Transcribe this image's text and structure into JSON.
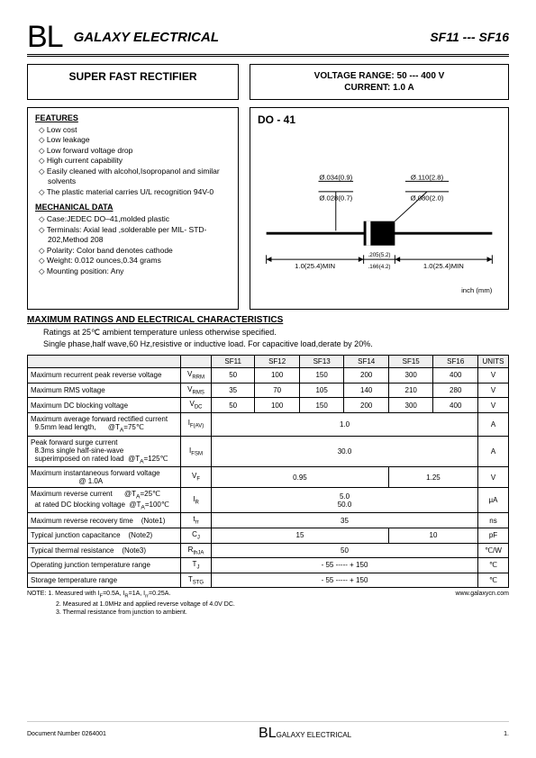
{
  "header": {
    "logo": "BL",
    "company": "GALAXY ELECTRICAL",
    "partno": "SF11 --- SF16"
  },
  "title": {
    "left": "SUPER  FAST  RECTIFIER",
    "right_line1": "VOLTAGE  RANGE:  50 --- 400 V",
    "right_line2": "CURRENT:  1.0 A"
  },
  "features": {
    "heading": "FEATURES",
    "items": [
      "Low cost",
      "Low leakage",
      "Low forward voltage drop",
      "High current capability",
      "Easily cleaned with alcohol,Isopropanol and similar solvents",
      "The plastic material carries U/L recognition 94V-0"
    ]
  },
  "mechdata": {
    "heading": "MECHANICAL DATA",
    "items": [
      "Case:JEDEC DO–41,molded plastic",
      "Terminals: Axial lead ,solderable per MIL- STD-202,Method 208",
      "Polarity: Color band denotes cathode",
      "Weight: 0.012 ounces,0.34 grams",
      "Mounting position: Any"
    ]
  },
  "package": {
    "name": "DO - 41",
    "dim1": "Ø.034(0.9)",
    "dim1b": "Ø.028(0.7)",
    "dim2": "Ø.110(2.8)",
    "dim2b": "Ø.080(2.0)",
    "len1": "1.0(25.4)MIN",
    "len2": ".205(5.2)",
    "len2b": ".166(4.2)",
    "len3": "1.0(25.4)MIN",
    "unitlabel": "inch (mm)"
  },
  "ratings": {
    "heading": "MAXIMUM RATINGS AND ELECTRICAL CHARACTERISTICS",
    "note1": "Ratings at 25℃ ambient temperature unless otherwise specified.",
    "note2": "Single phase,half wave,60 Hz,resistive or inductive load. For capacitive load,derate by 20%."
  },
  "table": {
    "headers": [
      "SF11",
      "SF12",
      "SF13",
      "SF14",
      "SF15",
      "SF16",
      "UNITS"
    ],
    "rows": [
      {
        "label": "Maximum recurrent peak reverse voltage",
        "sym": "V",
        "sub": "RRM",
        "vals": [
          "50",
          "100",
          "150",
          "200",
          "300",
          "400"
        ],
        "unit": "V"
      },
      {
        "label": "Maximum RMS voltage",
        "sym": "V",
        "sub": "RMS",
        "vals": [
          "35",
          "70",
          "105",
          "140",
          "210",
          "280"
        ],
        "unit": "V"
      },
      {
        "label": "Maximum DC blocking voltage",
        "sym": "V",
        "sub": "DC",
        "vals": [
          "50",
          "100",
          "150",
          "200",
          "300",
          "400"
        ],
        "unit": "V"
      },
      {
        "label": "Maximum average forward rectified current<br>&nbsp;&nbsp;9.5mm lead length,&nbsp;&nbsp;&nbsp;&nbsp;&nbsp;&nbsp;@T<sub>A</sub>=75℃",
        "sym": "I",
        "sub": "F(AV)",
        "span": "1.0",
        "unit": "A"
      },
      {
        "label": "Peak forward surge current<br>&nbsp;&nbsp;8.3ms single half-sine-wave<br>&nbsp;&nbsp;superimposed on rated load&nbsp;&nbsp;@T<sub>A</sub>=125℃",
        "sym": "I",
        "sub": "FSM",
        "span": "30.0",
        "unit": "A"
      },
      {
        "label": "Maximum instantaneous forward voltage<br>&nbsp;&nbsp;&nbsp;&nbsp;&nbsp;&nbsp;&nbsp;&nbsp;&nbsp;&nbsp;&nbsp;&nbsp;&nbsp;&nbsp;&nbsp;&nbsp;&nbsp;&nbsp;&nbsp;&nbsp;&nbsp;&nbsp;&nbsp;&nbsp;@ 1.0A",
        "sym": "V",
        "sub": "F",
        "split": [
          "0.95",
          "1.25"
        ],
        "splitCols": [
          4,
          2
        ],
        "unit": "V"
      },
      {
        "label": "Maximum reverse current&nbsp;&nbsp;&nbsp;&nbsp;&nbsp;&nbsp;@T<sub>A</sub>=25℃<br>&nbsp;&nbsp;at rated DC blocking voltage&nbsp;&nbsp;@T<sub>A</sub>=100℃",
        "sym": "I",
        "sub": "R",
        "stacked": [
          "5.0",
          "50.0"
        ],
        "unit": "μA"
      },
      {
        "label": "Maximum reverse recovery time&nbsp;&nbsp;&nbsp;&nbsp;(Note1)",
        "sym": "t",
        "sub": "rr",
        "span": "35",
        "unit": "ns"
      },
      {
        "label": "Typical junction capacitance&nbsp;&nbsp;&nbsp;&nbsp;(Note2)",
        "sym": "C",
        "sub": "J",
        "split": [
          "15",
          "10"
        ],
        "splitCols": [
          4,
          2
        ],
        "unit": "pF"
      },
      {
        "label": "Typical thermal resistance&nbsp;&nbsp;&nbsp;&nbsp;(Note3)",
        "sym": "R",
        "sub": "thJA",
        "span": "50",
        "unit": "℃/W"
      },
      {
        "label": "Operating junction temperature range",
        "sym": "T",
        "sub": "J",
        "span": "- 55 ----- + 150",
        "unit": "℃"
      },
      {
        "label": "Storage temperature range",
        "sym": "T",
        "sub": "STG",
        "span": "- 55 ----- + 150",
        "unit": "℃"
      }
    ]
  },
  "footnotes": {
    "n1": "NOTE:  1. Measured with I<sub>F</sub>=0.5A, I<sub>R</sub>=1A, I<sub>rr</sub>=0.25A.",
    "n2": "2. Measured at 1.0MHz and applied reverse voltage of 4.0V DC.",
    "n3": "3. Thermal resistance from junction to ambient.",
    "url": "www.galaxycn.com"
  },
  "footer": {
    "doc": "Document  Number   0264001",
    "logo": "BL",
    "company": "GALAXY ELECTRICAL",
    "page": "1."
  },
  "colors": {
    "bg": "#ffffff",
    "border": "#000000",
    "headerbg": "#f0f0f0"
  }
}
